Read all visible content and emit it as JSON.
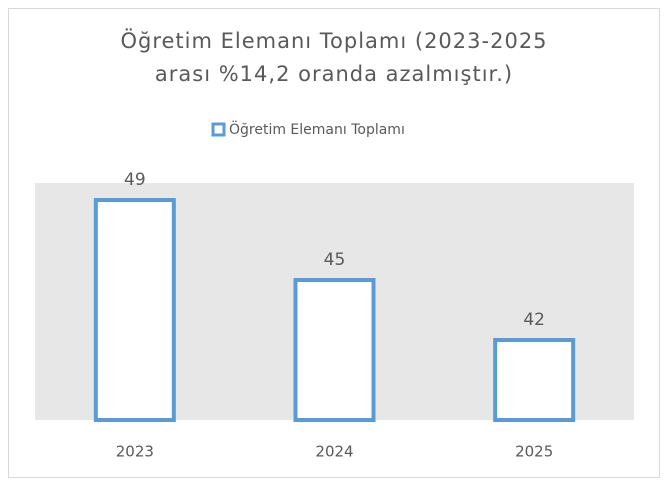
{
  "chart_data": {
    "type": "bar",
    "title": [
      "Öğretim Elemanı Toplamı (2023-2025",
      "arası %14,2 oranda azalmıştır.)"
    ],
    "categories": [
      "2023",
      "2024",
      "2025"
    ],
    "series": [
      {
        "name": "Öğretim Elemanı Toplamı",
        "color": "#5b9bd5",
        "values": [
          49,
          45,
          42
        ]
      }
    ],
    "ylim": [
      38,
      50
    ],
    "legend": "top"
  }
}
